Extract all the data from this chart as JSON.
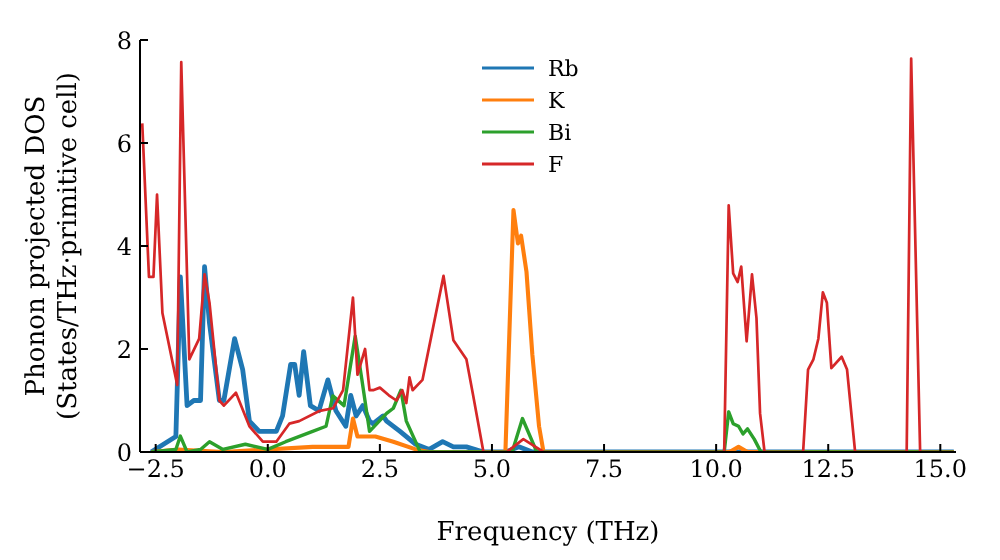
{
  "chart_data": {
    "type": "line",
    "xlabel": "Frequency (THz)",
    "ylabel": "Phonon projected DOS\n(States/THz·primitive cell)",
    "xlim": [
      -2.85,
      15.35
    ],
    "xticks": [
      {
        "value": -2.5,
        "label": "−2.5"
      },
      {
        "value": 0,
        "label": "0.0"
      },
      {
        "value": 2.5,
        "label": "2.5"
      },
      {
        "value": 5,
        "label": "5.0"
      },
      {
        "value": 7.5,
        "label": "7.5"
      },
      {
        "value": 10,
        "label": "10.0"
      },
      {
        "value": 12.5,
        "label": "12.5"
      },
      {
        "value": 15,
        "label": "15.0"
      }
    ],
    "ylim": [
      0,
      8
    ],
    "yticks": [
      0,
      2,
      4,
      6,
      8
    ],
    "grid": false,
    "legend": "top",
    "marker": "none",
    "line_style": "solid",
    "series": [
      {
        "name": "Rb",
        "color": "#1f77b4",
        "x": [
          -2.6,
          -2.05,
          -1.95,
          -1.8,
          -1.65,
          -1.5,
          -1.41,
          -1.3,
          -1.08,
          -0.98,
          -0.88,
          -0.74,
          -0.56,
          -0.41,
          -0.19,
          0.19,
          0.33,
          0.51,
          0.6,
          0.7,
          0.8,
          0.95,
          1.14,
          1.34,
          1.52,
          1.74,
          1.85,
          1.97,
          2.12,
          2.27,
          2.35,
          2.57,
          2.65,
          2.95,
          3.3,
          3.6,
          3.9,
          4.14,
          4.43,
          4.81,
          5.3,
          5.6,
          5.9,
          15.3
        ],
        "values": [
          0,
          0.3,
          3.4,
          0.9,
          1.0,
          1.0,
          3.6,
          2.5,
          1.0,
          1.0,
          1.5,
          2.2,
          1.6,
          0.6,
          0.4,
          0.4,
          0.7,
          1.7,
          1.7,
          1.1,
          1.95,
          0.9,
          0.8,
          1.4,
          0.8,
          0.5,
          1.1,
          0.7,
          0.9,
          0.6,
          0.55,
          0.7,
          0.6,
          0.4,
          0.15,
          0.05,
          0.2,
          0.1,
          0.1,
          0,
          0,
          0.1,
          0,
          0
        ]
      },
      {
        "name": "K",
        "color": "#ff7f0e",
        "x": [
          -2.6,
          -2.0,
          -1.0,
          1.0,
          1.8,
          1.9,
          2.0,
          2.4,
          2.8,
          3.3,
          3.6,
          5.3,
          5.48,
          5.58,
          5.65,
          5.77,
          5.9,
          6.05,
          6.15,
          10.3,
          10.5,
          10.7,
          15.3
        ],
        "values": [
          0,
          0.05,
          0,
          0.1,
          0.1,
          0.65,
          0.3,
          0.3,
          0.2,
          0.05,
          0,
          0,
          4.7,
          4.05,
          4.2,
          3.5,
          1.9,
          0.5,
          0,
          0,
          0.1,
          0,
          0
        ]
      },
      {
        "name": "Bi",
        "color": "#2ca02c",
        "x": [
          -2.6,
          -2.05,
          -1.95,
          -1.8,
          -1.5,
          -1.3,
          -1.0,
          -0.5,
          0,
          0.4,
          1.0,
          1.3,
          1.45,
          1.7,
          1.95,
          2.1,
          2.27,
          2.65,
          2.8,
          2.97,
          3.09,
          3.4,
          5.45,
          5.68,
          6.0,
          10.18,
          10.28,
          10.38,
          10.5,
          10.6,
          10.7,
          10.85,
          11.0,
          15.3
        ],
        "values": [
          0,
          0.05,
          0.31,
          0,
          0.05,
          0.2,
          0.05,
          0.15,
          0.05,
          0.2,
          0.4,
          0.5,
          1.09,
          0.9,
          2.25,
          1.4,
          0.4,
          0.75,
          0.85,
          1.2,
          0.6,
          0,
          0,
          0.65,
          0,
          0,
          0.78,
          0.55,
          0.5,
          0.35,
          0.45,
          0.25,
          0,
          0
        ]
      },
      {
        "name": "F",
        "color": "#d62728",
        "x": [
          -2.8,
          -2.65,
          -2.55,
          -2.47,
          -2.35,
          -2.02,
          -1.93,
          -1.75,
          -1.53,
          -1.41,
          -1.3,
          -1.08,
          -0.98,
          -0.71,
          -0.41,
          -0.11,
          0.19,
          0.48,
          0.7,
          1.16,
          1.46,
          1.68,
          1.9,
          2.0,
          2.17,
          2.27,
          2.35,
          2.5,
          2.7,
          2.87,
          3.0,
          3.09,
          3.16,
          3.23,
          3.45,
          3.92,
          4.14,
          4.43,
          4.58,
          4.81,
          5.33,
          5.7,
          6.15,
          10.18,
          10.28,
          10.38,
          10.48,
          10.56,
          10.68,
          10.8,
          10.9,
          10.98,
          11.08,
          11.94,
          12.05,
          12.17,
          12.28,
          12.38,
          12.47,
          12.57,
          12.8,
          12.92,
          13.1,
          14.25,
          14.35,
          14.55,
          15.3
        ],
        "values": [
          6.38,
          3.4,
          3.4,
          5.0,
          2.7,
          1.3,
          7.57,
          1.8,
          2.2,
          3.45,
          2.9,
          1.0,
          0.9,
          1.15,
          0.5,
          0.2,
          0.2,
          0.55,
          0.6,
          0.8,
          0.85,
          1.2,
          3.0,
          1.5,
          2.0,
          1.2,
          1.2,
          1.25,
          1.1,
          1.0,
          1.2,
          0.95,
          1.45,
          1.2,
          1.4,
          3.42,
          2.17,
          1.8,
          1.1,
          0,
          0,
          0.25,
          0,
          0,
          4.79,
          3.47,
          3.3,
          3.6,
          2.15,
          3.45,
          2.6,
          0.75,
          0,
          0,
          1.6,
          1.8,
          2.2,
          3.1,
          2.9,
          1.63,
          1.85,
          1.6,
          0,
          0,
          7.64,
          0,
          0
        ]
      }
    ]
  }
}
